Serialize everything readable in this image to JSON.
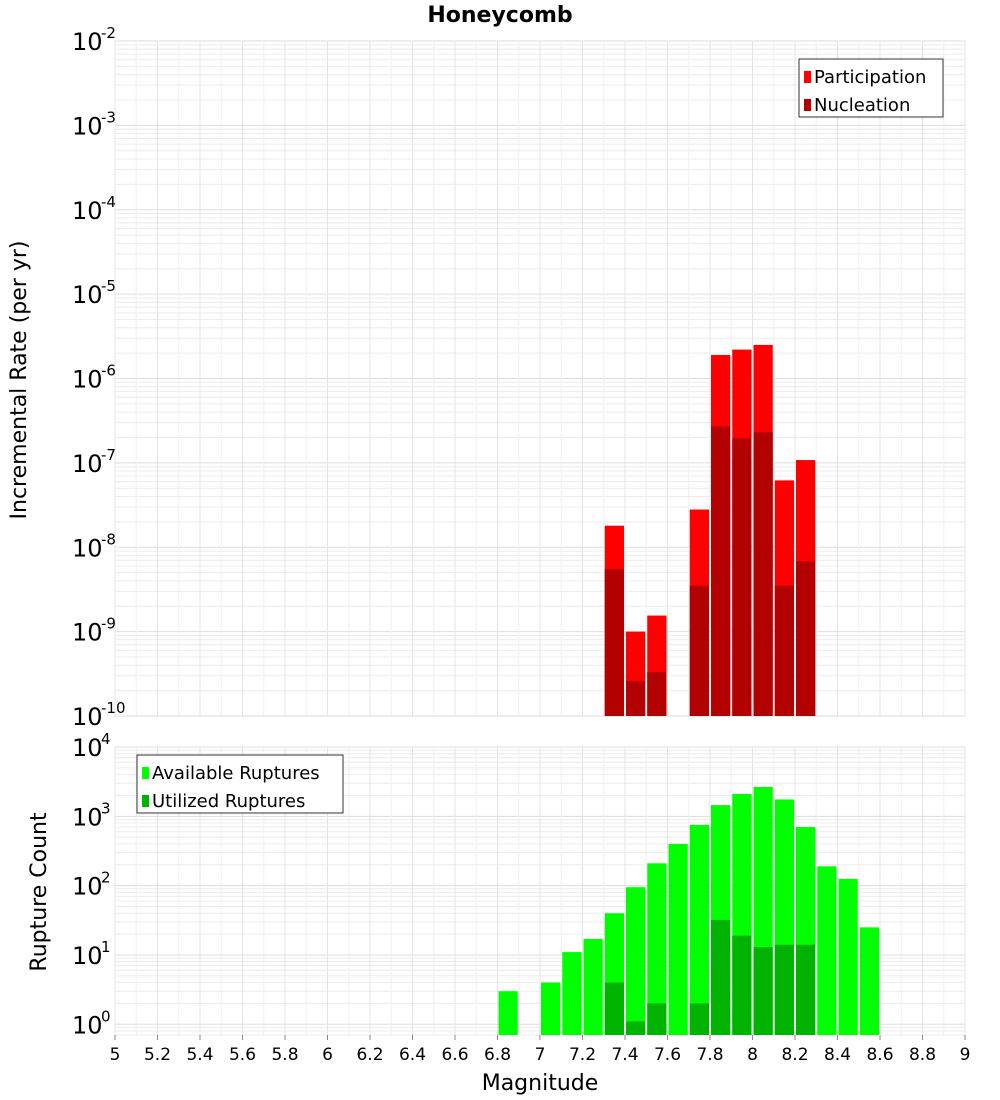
{
  "chart_data": [
    {
      "type": "bar",
      "title": "Honeycomb",
      "xlabel": "",
      "ylabel": "Incremental Rate (per yr)",
      "yscale": "log",
      "ylim": [
        1e-10,
        0.01
      ],
      "xlim": [
        5,
        9
      ],
      "grid": true,
      "legend_position": "top-right",
      "y_tick_exponents": [
        "-10",
        "-9",
        "-8",
        "-7",
        "-6",
        "-5",
        "-4",
        "-3",
        "-2"
      ],
      "x": [
        7.35,
        7.45,
        7.55,
        7.75,
        7.85,
        7.95,
        8.05,
        8.15,
        8.25
      ],
      "series": [
        {
          "name": "Participation",
          "color": "#ff0000",
          "values": [
            1.8e-08,
            1e-09,
            1.55e-09,
            2.8e-08,
            1.9e-06,
            2.2e-06,
            2.5e-06,
            6.2e-08,
            1.08e-07
          ]
        },
        {
          "name": "Nucleation",
          "color": "#b30000",
          "values": [
            5.5e-09,
            2.6e-10,
            3.3e-10,
            3.5e-09,
            2.7e-07,
            1.95e-07,
            2.3e-07,
            3.5e-09,
            6.8e-09
          ]
        }
      ]
    },
    {
      "type": "bar",
      "xlabel": "Magnitude",
      "ylabel": "Rupture Count",
      "yscale": "log",
      "ylim": [
        0.7,
        10000
      ],
      "xlim": [
        5,
        9
      ],
      "grid": true,
      "legend_position": "top-left",
      "x_ticks": [
        "5",
        "5.2",
        "5.4",
        "5.6",
        "5.8",
        "6",
        "6.2",
        "6.4",
        "6.6",
        "6.8",
        "7",
        "7.2",
        "7.4",
        "7.6",
        "7.8",
        "8",
        "8.2",
        "8.4",
        "8.6",
        "8.8",
        "9"
      ],
      "y_tick_exponents": [
        "0",
        "1",
        "2",
        "3",
        "4"
      ],
      "x": [
        6.85,
        6.95,
        7.05,
        7.15,
        7.25,
        7.35,
        7.45,
        7.55,
        7.65,
        7.75,
        7.85,
        7.95,
        8.05,
        8.15,
        8.25,
        8.35,
        8.45,
        8.55
      ],
      "series": [
        {
          "name": "Available Ruptures",
          "color": "#00ff00",
          "values": [
            3,
            0,
            4,
            11,
            17,
            40,
            95,
            210,
            400,
            750,
            1450,
            2100,
            2650,
            1750,
            700,
            190,
            125,
            25
          ]
        },
        {
          "name": "Utilized Ruptures",
          "color": "#00b300",
          "values": [
            0,
            0,
            0,
            0,
            0,
            4,
            1.1,
            2,
            0,
            2,
            32,
            19,
            13,
            14,
            14,
            0,
            0,
            0
          ]
        }
      ]
    }
  ]
}
